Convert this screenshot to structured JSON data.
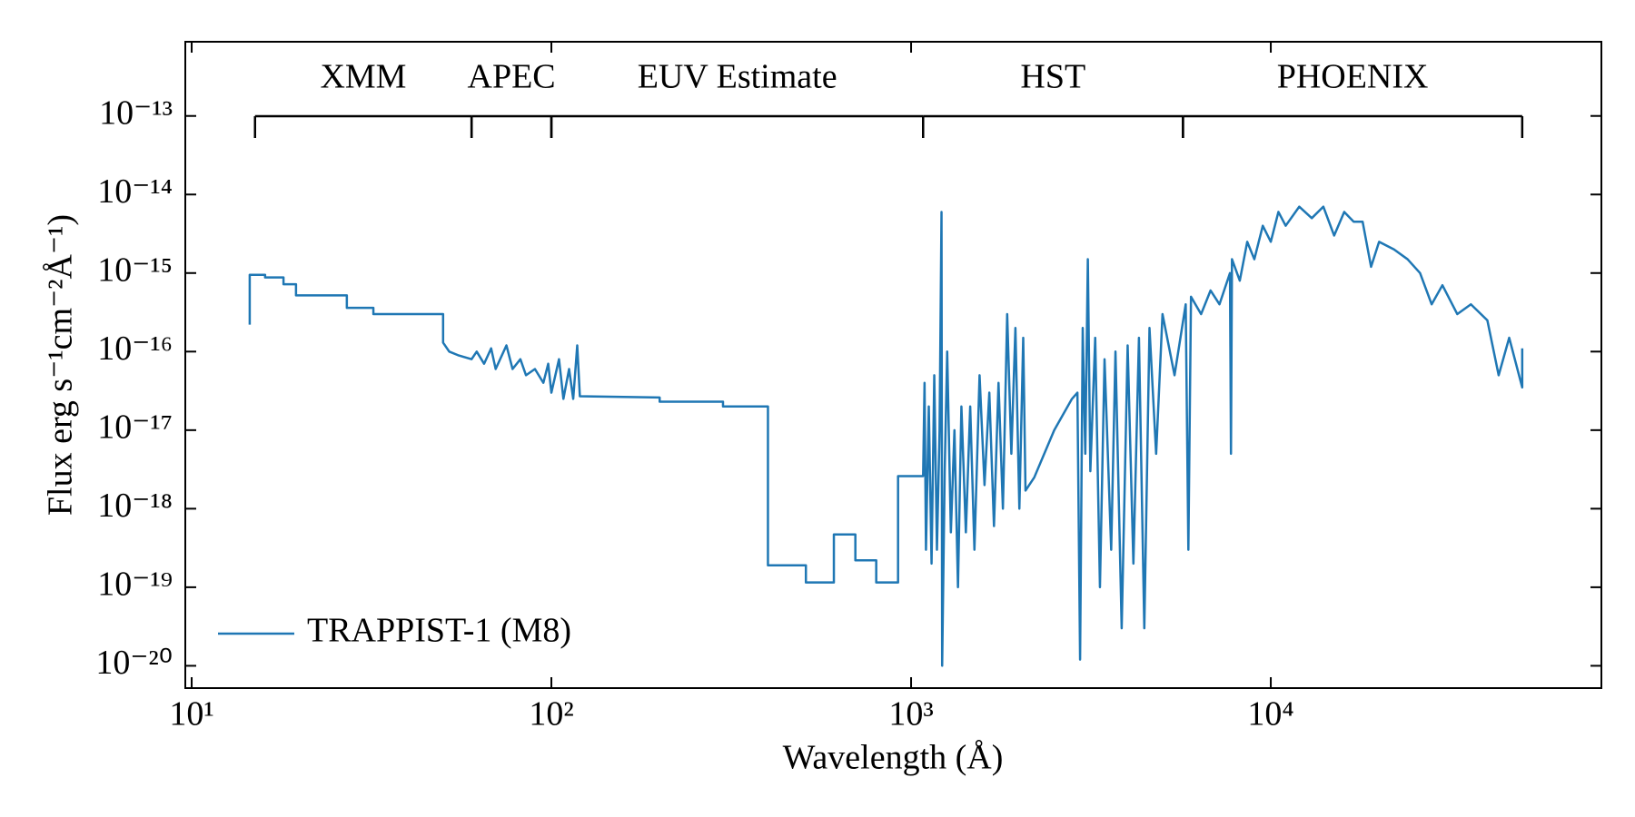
{
  "chart_data": {
    "type": "line",
    "xlabel": "Wavelength (Å)",
    "ylabel": "Flux erg s⁻¹cm⁻²Å⁻¹)",
    "log_x": true,
    "log_y": true,
    "legend": "lower left",
    "xlim": [
      9.6,
      83000
    ],
    "ylim": [
      5.2e-21,
      8.8e-13
    ],
    "xticks": [
      {
        "value": 10,
        "label": "10¹"
      },
      {
        "value": 100,
        "label": "10²"
      },
      {
        "value": 1000,
        "label": "10³"
      },
      {
        "value": 10000,
        "label": "10⁴"
      }
    ],
    "yticks": [
      {
        "value": 1e-20,
        "label": "10⁻²⁰"
      },
      {
        "value": 1e-19,
        "label": "10⁻¹⁹"
      },
      {
        "value": 1e-18,
        "label": "10⁻¹⁸"
      },
      {
        "value": 1e-17,
        "label": "10⁻¹⁷"
      },
      {
        "value": 1e-16,
        "label": "10⁻¹⁶"
      },
      {
        "value": 1e-15,
        "label": "10⁻¹⁵"
      },
      {
        "value": 1e-14,
        "label": "10⁻¹⁴"
      },
      {
        "value": 1e-13,
        "label": "10⁻¹³"
      }
    ],
    "regions": [
      {
        "label": "XMM",
        "start": 15,
        "end": 60
      },
      {
        "label": "APEC",
        "start": 60,
        "end": 100
      },
      {
        "label": "EUV Estimate",
        "start": 100,
        "end": 1080
      },
      {
        "label": "HST",
        "start": 1080,
        "end": 5700
      },
      {
        "label": "PHOENIX",
        "start": 5700,
        "end": 50000
      }
    ],
    "x": [
      14.5,
      14.5,
      16,
      16,
      18,
      18,
      19.5,
      19.5,
      27,
      27,
      32,
      32,
      50,
      50,
      52,
      55,
      60,
      62,
      65,
      68,
      70,
      75,
      78,
      82,
      85,
      90,
      95,
      98,
      100,
      105,
      108,
      112,
      115,
      118,
      120,
      200,
      200,
      300,
      300,
      400,
      400,
      510,
      510,
      610,
      610,
      700,
      700,
      800,
      800,
      920,
      920,
      1080,
      1090,
      1100,
      1120,
      1140,
      1160,
      1180,
      1200,
      1215,
      1220,
      1240,
      1260,
      1290,
      1320,
      1350,
      1380,
      1420,
      1460,
      1500,
      1550,
      1600,
      1650,
      1700,
      1750,
      1800,
      1850,
      1900,
      1950,
      2000,
      2050,
      2080,
      2200,
      2500,
      2800,
      2900,
      2950,
      3000,
      3050,
      3100,
      3150,
      3250,
      3350,
      3450,
      3600,
      3700,
      3850,
      4000,
      4150,
      4300,
      4450,
      4600,
      4800,
      5000,
      5400,
      5800,
      5900,
      6000,
      6400,
      6800,
      7200,
      7700,
      7750,
      7800,
      8200,
      8600,
      9000,
      9500,
      10000,
      10500,
      11000,
      12000,
      13000,
      14000,
      15000,
      16000,
      17000,
      18000,
      19000,
      20000,
      22000,
      24000,
      26000,
      28000,
      30000,
      33000,
      36000,
      40000,
      43000,
      46000,
      50000,
      50000
    ],
    "series": [
      {
        "name": "TRAPPIST-1 (M8)",
        "color": "#1f77b4",
        "values": [
          2.2e-16,
          9.5e-16,
          9.5e-16,
          8.8e-16,
          8.8e-16,
          7.2e-16,
          7.2e-16,
          5.2e-16,
          5.2e-16,
          3.6e-16,
          3.6e-16,
          3e-16,
          3e-16,
          1.3e-16,
          1e-16,
          9e-17,
          8e-17,
          1e-16,
          7e-17,
          1.1e-16,
          6e-17,
          1.2e-16,
          6e-17,
          8e-17,
          5e-17,
          6e-17,
          4e-17,
          7e-17,
          3e-17,
          8e-17,
          2.5e-17,
          6e-17,
          2.5e-17,
          1.2e-16,
          2.7e-17,
          2.6e-17,
          2.3e-17,
          2.3e-17,
          2e-17,
          2e-17,
          1.9e-19,
          1.9e-19,
          1.15e-19,
          1.15e-19,
          4.7e-19,
          4.7e-19,
          2.2e-19,
          2.2e-19,
          1.15e-19,
          1.15e-19,
          2.6e-18,
          2.6e-18,
          4e-17,
          3e-19,
          2e-17,
          2e-19,
          5e-17,
          3e-19,
          1e-17,
          6e-15,
          1e-20,
          3e-18,
          1e-16,
          5e-19,
          1e-17,
          1e-19,
          2e-17,
          5e-19,
          2e-17,
          3e-19,
          5e-17,
          2e-18,
          3e-17,
          6e-19,
          4e-17,
          1e-18,
          3e-16,
          5e-18,
          2e-16,
          1e-18,
          1.5e-16,
          1.7e-18,
          2.5e-18,
          1e-17,
          2.5e-17,
          3e-17,
          1.2e-20,
          2e-16,
          5e-18,
          1.5e-15,
          3e-18,
          1.5e-16,
          1e-19,
          8e-17,
          3e-19,
          1e-16,
          3e-20,
          1.2e-16,
          2e-19,
          1.5e-16,
          3e-20,
          2e-16,
          5e-18,
          3e-16,
          5e-17,
          4e-16,
          3e-19,
          5e-16,
          3e-16,
          6e-16,
          4e-16,
          1e-15,
          5e-18,
          1.5e-15,
          8e-16,
          2.5e-15,
          1.5e-15,
          4e-15,
          2.5e-15,
          6e-15,
          4e-15,
          7e-15,
          5e-15,
          7e-15,
          3e-15,
          6e-15,
          4.5e-15,
          4.5e-15,
          1.2e-15,
          2.5e-15,
          2e-15,
          1.5e-15,
          1e-15,
          4e-16,
          7e-16,
          3e-16,
          4e-16,
          2.5e-16,
          5e-17,
          1.5e-16,
          3.5e-17,
          1.1e-16
        ]
      }
    ]
  }
}
